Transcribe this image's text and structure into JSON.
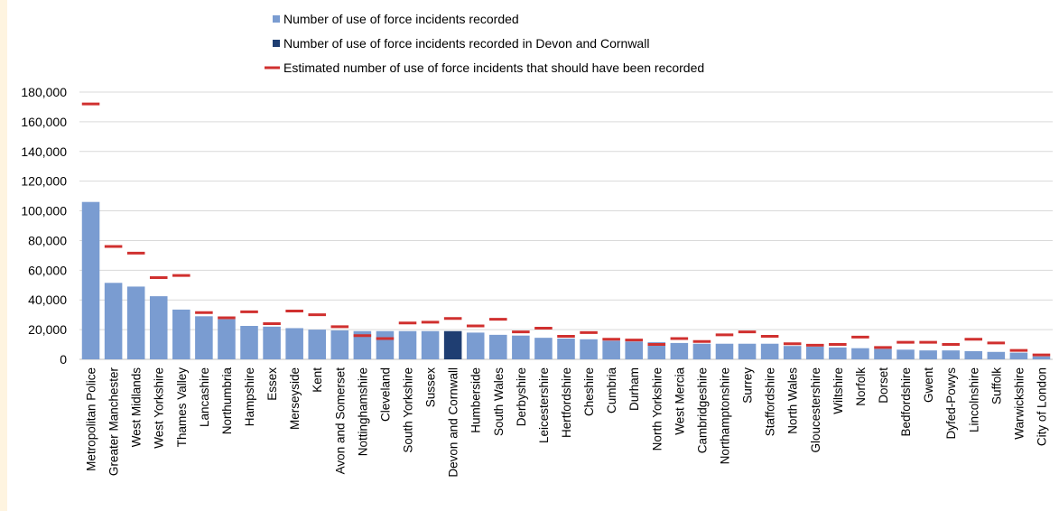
{
  "chart_data": {
    "type": "bar",
    "ylim": [
      0,
      180000
    ],
    "yticks": [
      "0",
      "20,000",
      "40,000",
      "60,000",
      "80,000",
      "100,000",
      "120,000",
      "140,000",
      "160,000",
      "180,000"
    ],
    "grid": true,
    "legend_position": "top-center",
    "legend": [
      {
        "label": "Number of use of force incidents recorded",
        "color": "#7a9cd1",
        "marker": "square"
      },
      {
        "label": "Number of use of force incidents recorded in Devon and Cornwall",
        "color": "#1f3e72",
        "marker": "square"
      },
      {
        "label": "Estimated number of use of force incidents that should have been recorded",
        "color": "#d0302f",
        "marker": "dash"
      }
    ],
    "highlight_category": "Devon and Cornwall",
    "categories": [
      "Metropolitan Police",
      "Greater Manchester",
      "West Midlands",
      "West Yorkshire",
      "Thames Valley",
      "Lancashire",
      "Northumbria",
      "Hampshire",
      "Essex",
      "Merseyside",
      "Kent",
      "Avon and Somerset",
      "Nottinghamshire",
      "Cleveland",
      "South Yorkshire",
      "Sussex",
      "Devon and Cornwall",
      "Humberside",
      "South Wales",
      "Derbyshire",
      "Leicestershire",
      "Hertfordshire",
      "Cheshire",
      "Cumbria",
      "Durham",
      "North Yorkshire",
      "West Mercia",
      "Cambridgeshire",
      "Northamptonshire",
      "Surrey",
      "Staffordshire",
      "North Wales",
      "Gloucestershire",
      "Wiltshire",
      "Norfolk",
      "Dorset",
      "Bedfordshire",
      "Gwent",
      "Dyfed-Powys",
      "Lincolnshire",
      "Suffolk",
      "Warwickshire",
      "City of London"
    ],
    "series": [
      {
        "name": "Number of use of force incidents recorded",
        "values": [
          106000,
          51500,
          49000,
          42500,
          33500,
          29000,
          27000,
          22500,
          22000,
          21000,
          20000,
          19500,
          19000,
          19000,
          19000,
          19000,
          19000,
          18000,
          16500,
          16000,
          14500,
          14000,
          13500,
          12500,
          12000,
          11500,
          11000,
          10500,
          10500,
          10500,
          10500,
          9000,
          8500,
          8000,
          7500,
          7000,
          6500,
          6000,
          6000,
          5500,
          5000,
          4500,
          2000
        ]
      },
      {
        "name": "Estimated number of use of force incidents that should have been recorded",
        "values": [
          172000,
          76000,
          71500,
          55000,
          56500,
          31500,
          28000,
          32000,
          24000,
          32500,
          30000,
          22000,
          16000,
          14000,
          24500,
          25000,
          27500,
          22500,
          27000,
          18500,
          21000,
          15500,
          18000,
          13500,
          13000,
          10000,
          14000,
          12000,
          16500,
          18500,
          15500,
          10500,
          9500,
          10000,
          15000,
          8000,
          11500,
          11500,
          10000,
          13500,
          11000,
          6000,
          3000
        ]
      }
    ]
  }
}
